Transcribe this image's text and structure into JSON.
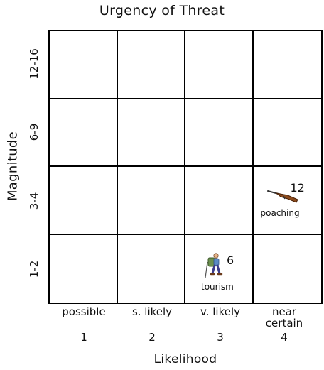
{
  "title": "Urgency of Threat",
  "y_axis": {
    "label": "Magnitude",
    "rows": [
      "12-16",
      "6-9",
      "3-4",
      "1-2"
    ]
  },
  "x_axis": {
    "label": "Likelihood",
    "columns": [
      {
        "label": "possible",
        "number": "1"
      },
      {
        "label": "s. likely",
        "number": "2"
      },
      {
        "label": "v. likely",
        "number": "3"
      },
      {
        "label": "near\ncertain",
        "number": "4"
      }
    ]
  },
  "threats": [
    {
      "name": "poaching",
      "score": "12",
      "likelihood": 4,
      "magnitude_row": "3-4",
      "icon": "rifle-icon"
    },
    {
      "name": "tourism",
      "score": "6",
      "likelihood": 3,
      "magnitude_row": "1-2",
      "icon": "hiker-icon"
    }
  ]
}
